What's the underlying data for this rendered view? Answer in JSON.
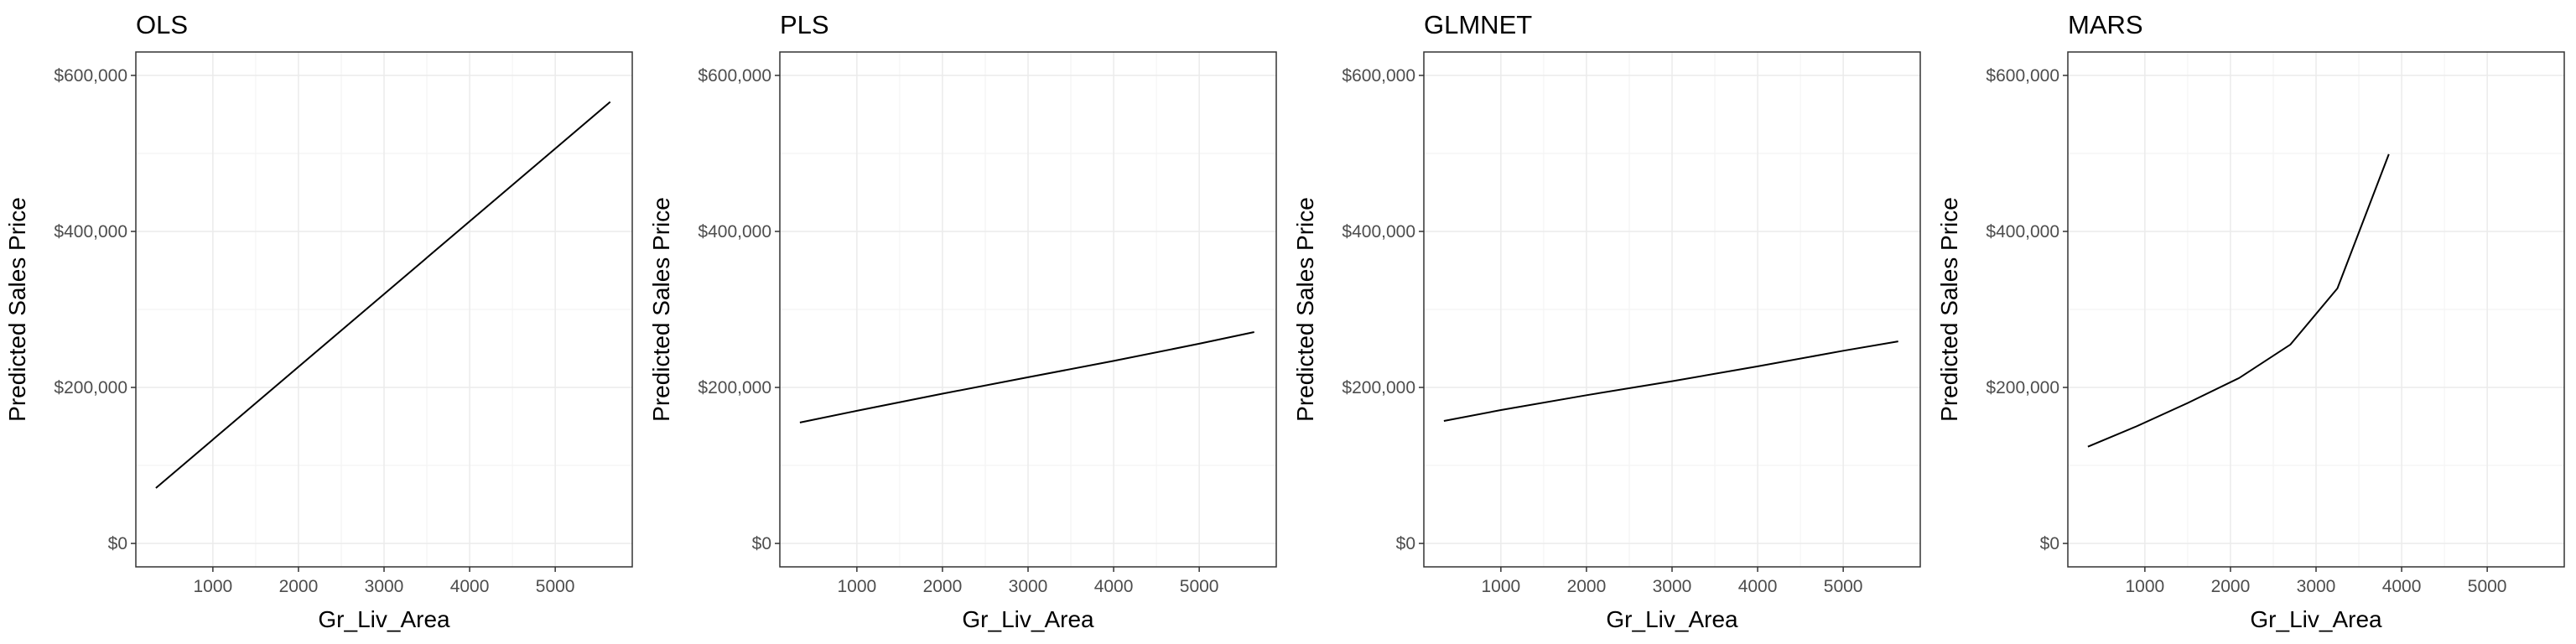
{
  "chart_data": [
    {
      "type": "line",
      "title": "OLS",
      "xlabel": "Gr_Liv_Area",
      "ylabel": "Predicted Sales Price",
      "xlim": [
        100,
        5900
      ],
      "ylim": [
        -30000,
        630000
      ],
      "xticks": [
        1000,
        2000,
        3000,
        4000,
        5000
      ],
      "xtick_labels": [
        "1000",
        "2000",
        "3000",
        "4000",
        "5000"
      ],
      "yticks": [
        0,
        200000,
        400000,
        600000
      ],
      "ytick_labels": [
        "$0",
        "$200,000",
        "$400,000",
        "$600,000"
      ],
      "grid": true,
      "series": [
        {
          "x": [
            334,
            5642
          ],
          "y": [
            71000,
            566000
          ]
        }
      ]
    },
    {
      "type": "line",
      "title": "PLS",
      "xlabel": "Gr_Liv_Area",
      "ylabel": "Predicted Sales Price",
      "xlim": [
        100,
        5900
      ],
      "ylim": [
        -30000,
        630000
      ],
      "xticks": [
        1000,
        2000,
        3000,
        4000,
        5000
      ],
      "xtick_labels": [
        "1000",
        "2000",
        "3000",
        "4000",
        "5000"
      ],
      "yticks": [
        0,
        200000,
        400000,
        600000
      ],
      "ytick_labels": [
        "$0",
        "$200,000",
        "$400,000",
        "$600,000"
      ],
      "grid": true,
      "series": [
        {
          "x": [
            334,
            1000,
            2000,
            3000,
            4000,
            5000,
            5642
          ],
          "y": [
            155000,
            170000,
            192000,
            213000,
            234000,
            256000,
            271000
          ]
        }
      ]
    },
    {
      "type": "line",
      "title": "GLMNET",
      "xlabel": "Gr_Liv_Area",
      "ylabel": "Predicted Sales Price",
      "xlim": [
        100,
        5900
      ],
      "ylim": [
        -30000,
        630000
      ],
      "xticks": [
        1000,
        2000,
        3000,
        4000,
        5000
      ],
      "xtick_labels": [
        "1000",
        "2000",
        "3000",
        "4000",
        "5000"
      ],
      "yticks": [
        0,
        200000,
        400000,
        600000
      ],
      "ytick_labels": [
        "$0",
        "$200,000",
        "$400,000",
        "$600,000"
      ],
      "grid": true,
      "series": [
        {
          "x": [
            334,
            1000,
            2000,
            3000,
            4000,
            5000,
            5642
          ],
          "y": [
            157000,
            171000,
            190000,
            208000,
            227000,
            247000,
            259000
          ]
        }
      ]
    },
    {
      "type": "line",
      "title": "MARS",
      "xlabel": "Gr_Liv_Area",
      "ylabel": "Predicted Sales Price",
      "xlim": [
        100,
        5900
      ],
      "ylim": [
        -30000,
        630000
      ],
      "xticks": [
        1000,
        2000,
        3000,
        4000,
        5000
      ],
      "xtick_labels": [
        "1000",
        "2000",
        "3000",
        "4000",
        "5000"
      ],
      "yticks": [
        0,
        200000,
        400000,
        600000
      ],
      "ytick_labels": [
        "$0",
        "$200,000",
        "$400,000",
        "$600,000"
      ],
      "grid": true,
      "series": [
        {
          "x": [
            334,
            900,
            1500,
            2100,
            2700,
            3250,
            3850
          ],
          "y": [
            124000,
            150000,
            180000,
            212000,
            255000,
            327000,
            499000
          ]
        }
      ]
    }
  ]
}
